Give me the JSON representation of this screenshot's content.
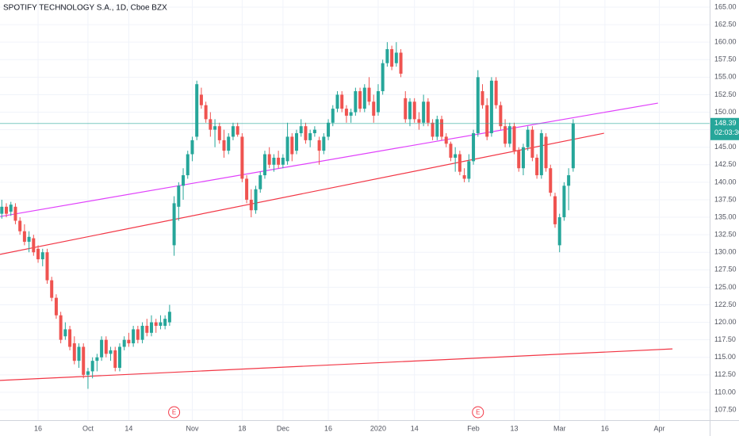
{
  "chart_data": {
    "type": "candlestick",
    "title": "SPOTIFY TECHNOLOGY S.A., 1D, Cboe BZX",
    "up_color": "#26a69a",
    "down_color": "#ef5350",
    "xlim": [
      -8.4,
      148.1
    ],
    "ylim": [
      106.03,
      166.02
    ],
    "grid": true,
    "yticks": [
      {
        "value": 107.5,
        "label": "107.50"
      },
      {
        "value": 110,
        "label": "110.00"
      },
      {
        "value": 112.5,
        "label": "112.50"
      },
      {
        "value": 115,
        "label": "115.00"
      },
      {
        "value": 117.5,
        "label": "117.50"
      },
      {
        "value": 120,
        "label": "120.00"
      },
      {
        "value": 122.5,
        "label": "122.50"
      },
      {
        "value": 125,
        "label": "125.00"
      },
      {
        "value": 127.5,
        "label": "127.50"
      },
      {
        "value": 130,
        "label": "130.00"
      },
      {
        "value": 132.5,
        "label": "132.50"
      },
      {
        "value": 135,
        "label": "135.00"
      },
      {
        "value": 137.5,
        "label": "137.50"
      },
      {
        "value": 140,
        "label": "140.00"
      },
      {
        "value": 142.5,
        "label": "142.50"
      },
      {
        "value": 145,
        "label": "145.00"
      },
      {
        "value": 147.5,
        "label": "147.50"
      },
      {
        "value": 150,
        "label": "150.00"
      },
      {
        "value": 152.5,
        "label": "152.50"
      },
      {
        "value": 155,
        "label": "155.00"
      },
      {
        "value": 157.5,
        "label": "157.50"
      },
      {
        "value": 160,
        "label": "160.00"
      },
      {
        "value": 162.5,
        "label": "162.50"
      },
      {
        "value": 165,
        "label": "165.00"
      }
    ],
    "xticks": [
      {
        "value": 0,
        "label": "16"
      },
      {
        "value": 11,
        "label": "Oct"
      },
      {
        "value": 20,
        "label": "14"
      },
      {
        "value": 34,
        "label": "Nov"
      },
      {
        "value": 45,
        "label": "18"
      },
      {
        "value": 54,
        "label": "Dec"
      },
      {
        "value": 64,
        "label": "16"
      },
      {
        "value": 75,
        "label": "2020"
      },
      {
        "value": 83,
        "label": "14"
      },
      {
        "value": 96,
        "label": "Feb"
      },
      {
        "value": 105,
        "label": "13"
      },
      {
        "value": 115,
        "label": "Mar"
      },
      {
        "value": 125,
        "label": "16"
      },
      {
        "value": 137,
        "label": "Apr"
      }
    ],
    "series": {
      "x": [
        -8,
        -7,
        -6,
        -5,
        -4,
        -3,
        -2,
        -1,
        0,
        1,
        2,
        3,
        4,
        5,
        6,
        7,
        8,
        9,
        10,
        11,
        12,
        13,
        14,
        15,
        16,
        17,
        18,
        19,
        20,
        21,
        22,
        23,
        24,
        25,
        26,
        27,
        28,
        29,
        30,
        31,
        32,
        33,
        34,
        35,
        36,
        37,
        38,
        39,
        40,
        41,
        42,
        43,
        44,
        45,
        46,
        47,
        48,
        49,
        50,
        51,
        52,
        53,
        54,
        55,
        56,
        57,
        58,
        59,
        60,
        61,
        62,
        63,
        64,
        65,
        66,
        67,
        68,
        69,
        70,
        71,
        72,
        73,
        74,
        75,
        76,
        77,
        78,
        79,
        80,
        81,
        82,
        83,
        84,
        85,
        86,
        87,
        88,
        89,
        90,
        91,
        92,
        93,
        94,
        95,
        96,
        97,
        98,
        99,
        100,
        101,
        102,
        103,
        104,
        105,
        106,
        107,
        108,
        109,
        110,
        111,
        112,
        113,
        114,
        115,
        116,
        117,
        118
      ],
      "open": [
        135.5,
        136.5,
        135.8,
        136.5,
        134.5,
        133.0,
        131.5,
        132.0,
        130.5,
        129.0,
        130.0,
        126.0,
        123.5,
        121.0,
        118.0,
        119.0,
        117.0,
        114.5,
        116.5,
        112.5,
        113.0,
        114.5,
        115.0,
        117.5,
        115.5,
        116.0,
        113.5,
        116.5,
        117.5,
        117.0,
        119.0,
        117.5,
        119.5,
        118.5,
        120.0,
        119.5,
        119.5,
        120.0,
        131.0,
        136.5,
        139.5,
        141.0,
        144.0,
        146.5,
        152.5,
        151.0,
        149.0,
        147.5,
        148.0,
        146.0,
        144.5,
        146.5,
        148.0,
        146.5,
        140.5,
        137.5,
        136.0,
        139.0,
        141.0,
        144.0,
        142.5,
        143.5,
        142.5,
        143.0,
        146.5,
        144.5,
        147.0,
        148.0,
        146.0,
        147.0,
        146.0,
        144.5,
        146.5,
        148.5,
        150.5,
        152.5,
        150.5,
        149.5,
        150.0,
        153.0,
        150.5,
        153.5,
        151.5,
        150.0,
        153.0,
        157.0,
        159.0,
        157.0,
        158.5,
        152.0,
        149.0,
        151.5,
        149.0,
        148.5,
        151.5,
        148.5,
        146.5,
        149.0,
        146.5,
        145.5,
        143.5,
        144.0,
        141.0,
        140.5,
        143.0,
        147.0,
        153.0,
        151.0,
        147.0,
        154.5,
        151.0,
        148.0,
        145.5,
        148.0,
        144.5,
        142.0,
        145.0,
        147.5,
        143.5,
        141.0,
        146.5,
        142.0,
        138.0,
        131.0,
        135.0,
        139.5,
        142.0
      ],
      "high": [
        137.5,
        137.0,
        137.2,
        137.0,
        135.0,
        134.0,
        133.0,
        132.5,
        131.0,
        130.5,
        130.5,
        126.5,
        124.0,
        121.5,
        120.0,
        119.5,
        118.0,
        117.0,
        117.0,
        113.5,
        115.0,
        115.5,
        118.0,
        118.0,
        116.5,
        116.5,
        117.0,
        118.0,
        118.5,
        119.5,
        119.5,
        120.0,
        120.5,
        121.0,
        120.5,
        121.0,
        121.0,
        122.5,
        138.0,
        140.0,
        142.0,
        144.5,
        146.5,
        154.5,
        153.5,
        151.5,
        150.0,
        149.0,
        148.5,
        147.5,
        147.0,
        148.5,
        148.5,
        147.0,
        141.0,
        139.0,
        139.5,
        141.5,
        144.5,
        145.0,
        144.0,
        144.5,
        144.0,
        148.5,
        147.0,
        147.5,
        149.0,
        148.5,
        147.5,
        148.0,
        146.5,
        147.0,
        149.0,
        151.0,
        153.0,
        153.0,
        151.0,
        150.5,
        153.5,
        153.5,
        154.0,
        155.0,
        152.5,
        154.0,
        157.5,
        160.0,
        159.5,
        160.0,
        159.0,
        153.0,
        152.0,
        152.0,
        150.0,
        152.5,
        152.0,
        149.0,
        149.5,
        149.5,
        147.0,
        145.8,
        145.0,
        144.5,
        142.0,
        144.0,
        147.5,
        156.0,
        154.0,
        152.0,
        155.0,
        155.0,
        151.5,
        149.0,
        148.5,
        148.5,
        145.0,
        145.5,
        148.0,
        148.0,
        144.0,
        147.5,
        147.0,
        142.5,
        138.5,
        135.5,
        140.0,
        142.0,
        149.0
      ],
      "low": [
        134.8,
        135.0,
        135.2,
        134.0,
        132.5,
        131.0,
        130.0,
        129.5,
        128.5,
        128.0,
        125.5,
        123.0,
        120.5,
        117.0,
        117.5,
        116.0,
        114.0,
        113.5,
        112.0,
        110.5,
        112.0,
        113.0,
        114.5,
        115.0,
        114.5,
        113.0,
        113.0,
        116.0,
        116.5,
        116.5,
        117.0,
        117.0,
        118.0,
        118.0,
        118.5,
        119.0,
        119.0,
        119.5,
        129.5,
        134.5,
        137.5,
        140.5,
        143.0,
        146.0,
        150.5,
        148.5,
        146.5,
        145.0,
        145.5,
        143.5,
        144.0,
        146.0,
        146.5,
        140.0,
        137.0,
        135.0,
        135.5,
        138.5,
        140.5,
        142.0,
        141.5,
        142.0,
        142.0,
        142.5,
        143.0,
        144.0,
        146.5,
        145.5,
        145.0,
        146.5,
        142.5,
        144.0,
        146.0,
        148.0,
        150.0,
        150.0,
        148.5,
        148.5,
        149.5,
        150.0,
        150.0,
        151.0,
        148.5,
        149.5,
        152.5,
        156.5,
        156.0,
        156.5,
        155.0,
        148.5,
        148.0,
        148.5,
        147.5,
        148.0,
        148.0,
        146.0,
        146.0,
        146.0,
        145.0,
        143.0,
        141.5,
        141.0,
        140.0,
        140.0,
        142.5,
        146.5,
        150.5,
        146.0,
        146.5,
        150.5,
        147.5,
        145.0,
        145.0,
        144.0,
        141.5,
        141.0,
        144.5,
        143.0,
        140.5,
        140.5,
        141.5,
        138.0,
        133.5,
        130.0,
        134.5,
        136.0,
        141.5
      ],
      "close": [
        136.5,
        135.5,
        136.8,
        134.5,
        133.0,
        131.5,
        132.2,
        130.0,
        129.0,
        130.0,
        126.0,
        123.5,
        121.0,
        117.5,
        119.0,
        116.5,
        114.5,
        116.5,
        112.5,
        113.0,
        114.5,
        115.0,
        117.5,
        115.5,
        116.0,
        113.5,
        116.5,
        117.5,
        117.0,
        119.0,
        117.5,
        119.5,
        118.5,
        120.0,
        119.5,
        120.0,
        120.5,
        121.5,
        137.0,
        139.5,
        141.0,
        144.0,
        146.0,
        154.0,
        151.0,
        149.0,
        147.5,
        148.0,
        146.0,
        144.5,
        146.5,
        148.0,
        146.8,
        140.5,
        137.5,
        136.0,
        139.0,
        141.0,
        144.0,
        142.5,
        143.5,
        142.5,
        143.5,
        146.5,
        144.0,
        147.0,
        148.0,
        146.0,
        147.0,
        147.5,
        144.5,
        146.5,
        148.5,
        150.5,
        152.5,
        150.5,
        149.5,
        150.0,
        153.0,
        150.5,
        153.5,
        151.5,
        149.5,
        153.0,
        157.0,
        159.0,
        156.5,
        158.5,
        155.5,
        149.0,
        151.5,
        149.0,
        148.5,
        151.5,
        148.5,
        146.5,
        149.0,
        146.5,
        145.5,
        143.5,
        144.0,
        141.5,
        140.5,
        143.0,
        147.0,
        155.0,
        151.0,
        146.5,
        154.5,
        151.0,
        148.0,
        145.5,
        148.0,
        144.5,
        142.0,
        145.0,
        147.5,
        143.5,
        141.0,
        147.0,
        142.0,
        138.5,
        134.0,
        135.0,
        139.5,
        141.0,
        148.39
      ]
    },
    "trendlines": [
      {
        "color": "#e040fb",
        "start": [
          -8.4,
          135.1
        ],
        "end": [
          136.7,
          151.3
        ]
      },
      {
        "color": "#f23645",
        "start": [
          -8.4,
          129.7
        ],
        "end": [
          124.8,
          147.0
        ]
      },
      {
        "color": "#f23645",
        "start": [
          -8.4,
          111.7
        ],
        "end": [
          139.9,
          116.2
        ]
      }
    ],
    "last_price": 148.39,
    "last_price_color": "#26a69a",
    "countdown": "02:03:30",
    "events": [
      {
        "x": 30,
        "label": "E"
      },
      {
        "x": 97,
        "label": "E"
      }
    ]
  }
}
